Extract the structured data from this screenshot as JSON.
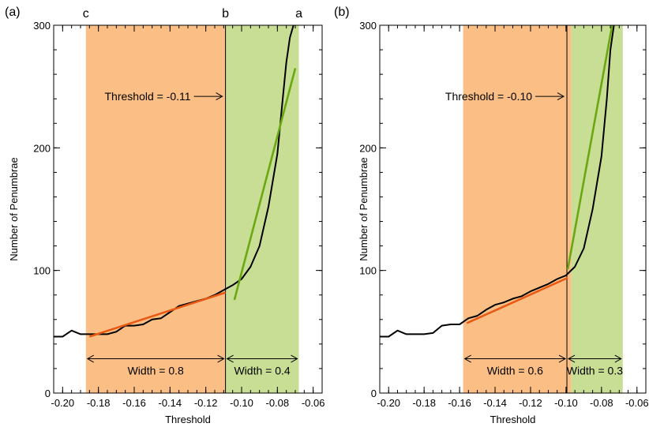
{
  "chart_data": [
    {
      "type": "line",
      "panel_label": "(a)",
      "xlabel": "Threshold",
      "ylabel": "Number of Penumbrae",
      "xlim": [
        -0.205,
        -0.055
      ],
      "ylim": [
        0,
        300
      ],
      "x_ticks": [
        -0.2,
        -0.18,
        -0.16,
        -0.14,
        -0.12,
        -0.1,
        -0.08,
        -0.06
      ],
      "x_tick_labels": [
        "-0.20",
        "-0.18",
        "-0.16",
        "-0.14",
        "-0.12",
        "-0.10",
        "-0.08",
        "-0.06"
      ],
      "y_ticks": [
        0,
        100,
        200,
        300
      ],
      "y_tick_labels": [
        "0",
        "100",
        "200",
        "300"
      ],
      "regions": [
        {
          "name": "orange",
          "x0": -0.187,
          "x1": -0.109,
          "color": "#fbbf85"
        },
        {
          "name": "green",
          "x0": -0.109,
          "x1": -0.068,
          "color": "#c8de94"
        }
      ],
      "threshold_line": -0.109,
      "threshold_text": "Threshold = -0.11",
      "threshold_text_y": 242,
      "width_annotations": [
        {
          "x0": -0.187,
          "x1": -0.109,
          "text": "Width = 0.8",
          "y": 28
        },
        {
          "x0": -0.109,
          "x1": -0.068,
          "text": "Width = 0.4",
          "y": 28
        }
      ],
      "corner_labels": [
        {
          "x": -0.187,
          "text": "c"
        },
        {
          "x": -0.109,
          "text": "b"
        },
        {
          "x": -0.068,
          "text": "a"
        }
      ],
      "series": [
        {
          "color": "#000000",
          "x": [
            -0.205,
            -0.2,
            -0.195,
            -0.19,
            -0.185,
            -0.18,
            -0.175,
            -0.17,
            -0.165,
            -0.16,
            -0.155,
            -0.15,
            -0.145,
            -0.14,
            -0.135,
            -0.13,
            -0.125,
            -0.12,
            -0.115,
            -0.11,
            -0.105,
            -0.1,
            -0.095,
            -0.09,
            -0.085,
            -0.08,
            -0.077,
            -0.075,
            -0.073,
            -0.071
          ],
          "y": [
            46,
            46,
            51,
            48,
            48,
            48,
            48,
            50,
            55,
            55,
            56,
            60,
            61,
            66,
            71,
            73,
            75,
            77,
            80,
            84,
            88,
            93,
            103,
            120,
            152,
            195,
            240,
            270,
            290,
            300
          ]
        },
        {
          "color": "#e85a14",
          "x": [
            -0.185,
            -0.109
          ],
          "y": [
            46,
            82
          ]
        },
        {
          "color": "#6aa812",
          "x": [
            -0.104,
            -0.07
          ],
          "y": [
            76,
            265
          ]
        }
      ]
    },
    {
      "type": "line",
      "panel_label": "(b)",
      "xlabel": "Threshold",
      "ylabel": "Number of Penumbrae",
      "xlim": [
        -0.205,
        -0.055
      ],
      "ylim": [
        0,
        300
      ],
      "x_ticks": [
        -0.2,
        -0.18,
        -0.16,
        -0.14,
        -0.12,
        -0.1,
        -0.08,
        -0.06
      ],
      "x_tick_labels": [
        "-0.20",
        "-0.18",
        "-0.16",
        "-0.14",
        "-0.12",
        "-0.10",
        "-0.08",
        "-0.06"
      ],
      "y_ticks": [
        0,
        100,
        200,
        300
      ],
      "y_tick_labels": [
        "0",
        "100",
        "200",
        "300"
      ],
      "regions": [
        {
          "name": "orange",
          "x0": -0.158,
          "x1": -0.097,
          "color": "#fbbf85"
        },
        {
          "name": "green",
          "x0": -0.097,
          "x1": -0.068,
          "color": "#c8de94"
        }
      ],
      "threshold_line": -0.0995,
      "threshold_text": "Threshold = -0.10",
      "threshold_text_y": 242,
      "width_annotations": [
        {
          "x0": -0.158,
          "x1": -0.0995,
          "text": "Width = 0.6",
          "y": 28
        },
        {
          "x0": -0.0995,
          "x1": -0.068,
          "text": "Width = 0.3",
          "y": 28
        }
      ],
      "corner_labels": [],
      "series": [
        {
          "color": "#000000",
          "x": [
            -0.205,
            -0.2,
            -0.195,
            -0.19,
            -0.185,
            -0.18,
            -0.175,
            -0.17,
            -0.165,
            -0.16,
            -0.155,
            -0.15,
            -0.145,
            -0.14,
            -0.135,
            -0.13,
            -0.125,
            -0.12,
            -0.115,
            -0.11,
            -0.105,
            -0.1,
            -0.095,
            -0.09,
            -0.085,
            -0.08,
            -0.077,
            -0.075,
            -0.073
          ],
          "y": [
            46,
            46,
            51,
            48,
            48,
            48,
            49,
            55,
            56,
            56,
            61,
            63,
            68,
            72,
            74,
            77,
            79,
            83,
            86,
            89,
            93,
            96,
            103,
            118,
            150,
            193,
            240,
            280,
            300
          ]
        },
        {
          "color": "#e85a14",
          "x": [
            -0.156,
            -0.099
          ],
          "y": [
            57,
            94
          ]
        },
        {
          "color": "#6aa812",
          "x": [
            -0.099,
            -0.074
          ],
          "y": [
            101,
            300
          ]
        }
      ]
    }
  ]
}
